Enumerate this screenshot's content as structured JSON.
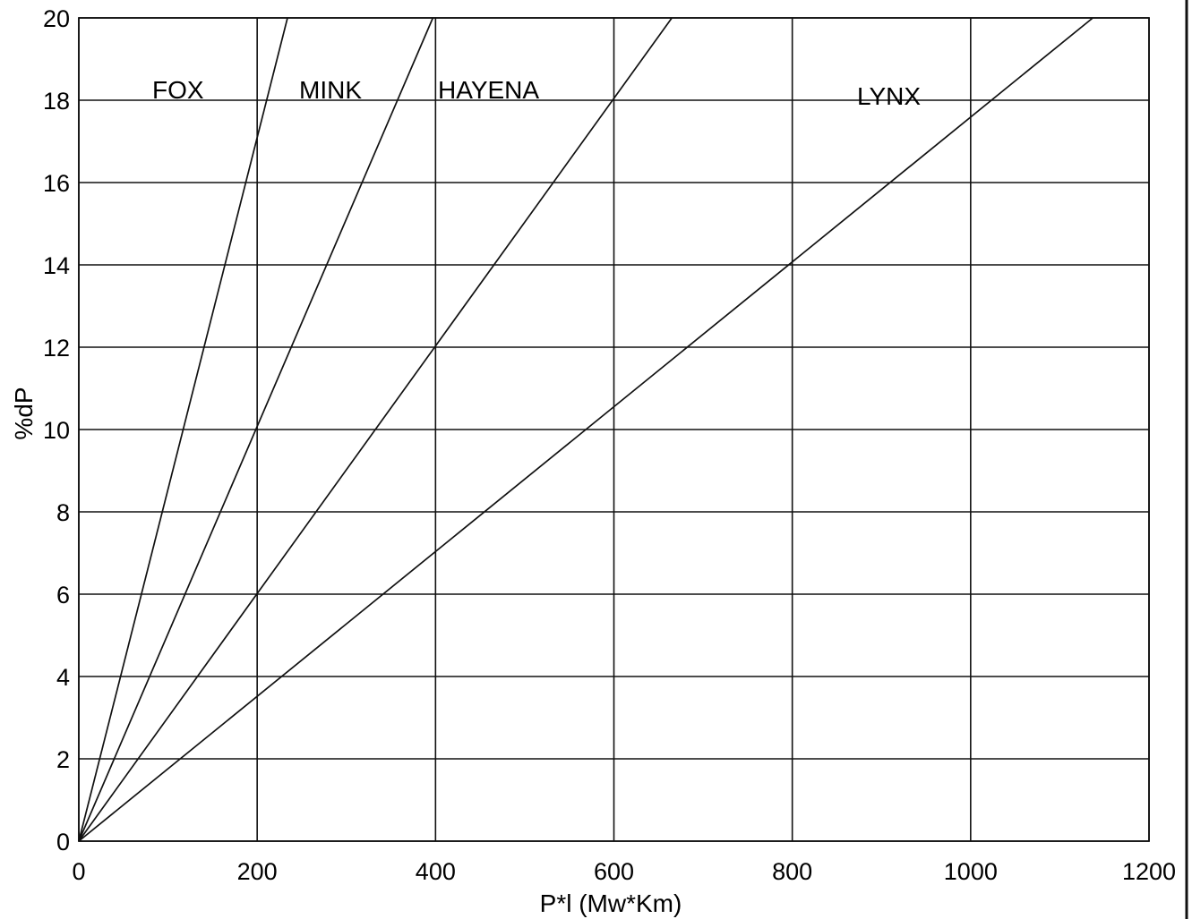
{
  "chart_data": {
    "type": "line",
    "title": "",
    "xlabel": "P*l  (Mw*Km)",
    "ylabel": "%dP",
    "xlim": [
      0,
      1200
    ],
    "ylim": [
      0,
      20
    ],
    "xticks": [
      "0",
      "200",
      "400",
      "600",
      "800",
      "1000",
      "1200"
    ],
    "yticks": [
      "0",
      "2",
      "4",
      "6",
      "8",
      "10",
      "12",
      "14",
      "16",
      "18",
      "20"
    ],
    "grid": true,
    "series": [
      {
        "name": "FOX",
        "x": [
          0,
          234
        ],
        "values": [
          0,
          20
        ]
      },
      {
        "name": "MINK",
        "x": [
          0,
          397
        ],
        "values": [
          0,
          20
        ]
      },
      {
        "name": "HAYENA",
        "x": [
          0,
          665
        ],
        "values": [
          0,
          20
        ]
      },
      {
        "name": "LYNX",
        "x": [
          0,
          1137
        ],
        "values": [
          0,
          20
        ]
      }
    ],
    "annotations": [
      "FOX",
      "MINK",
      "HAYENA",
      "LYNX"
    ]
  }
}
